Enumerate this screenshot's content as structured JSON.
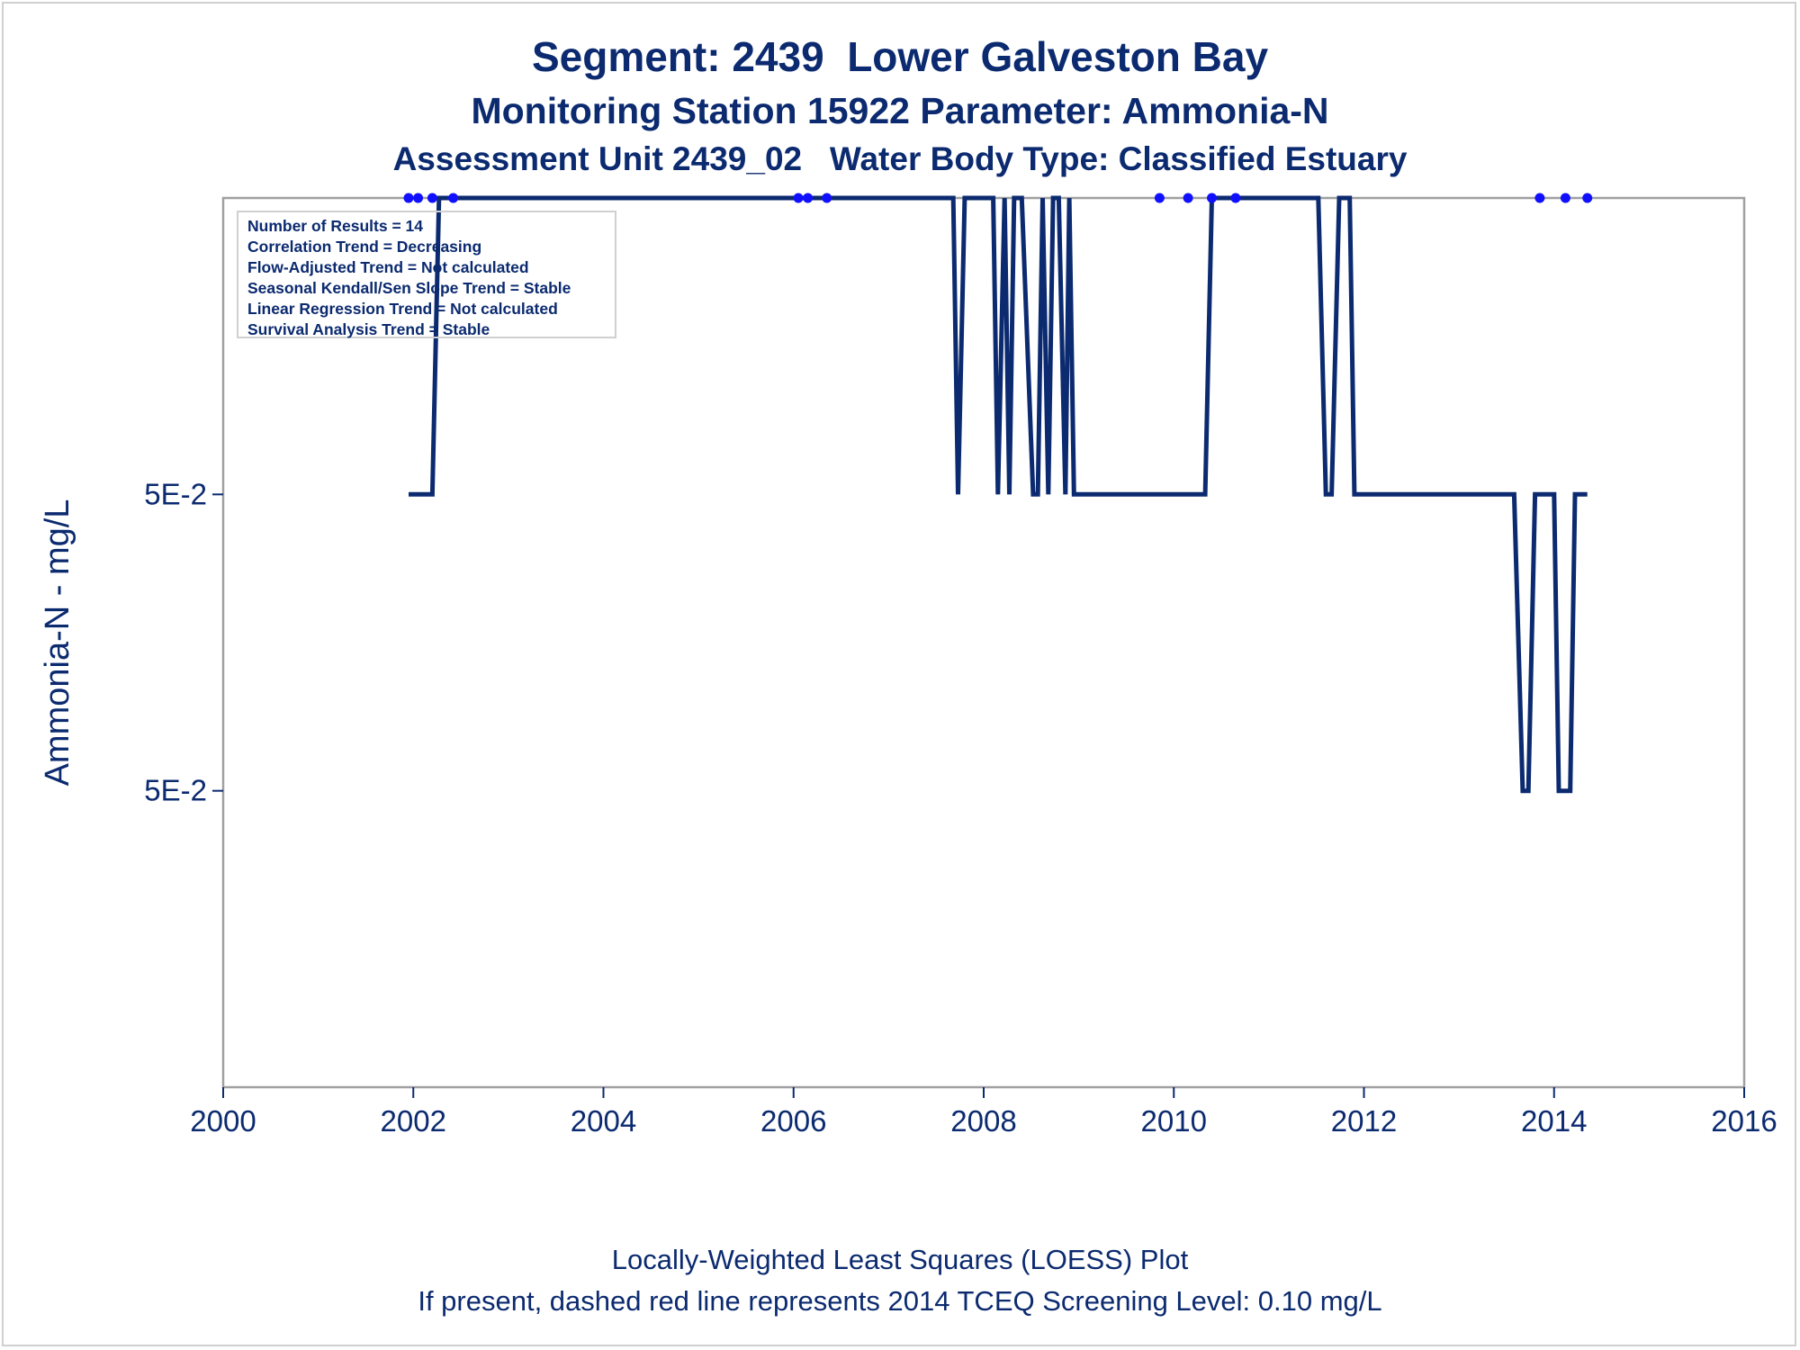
{
  "titles": {
    "line1": "Segment: 2439  Lower Galveston Bay",
    "line2": "Monitoring Station 15922 Parameter: Ammonia-N",
    "line3": "Assessment Unit 2439_02   Water Body Type: Classified Estuary"
  },
  "footnotes": {
    "line1": "Locally-Weighted Least Squares (LOESS) Plot",
    "line2": "If present, dashed red line represents 2014 TCEQ Screening Level: 0.10 mg/L"
  },
  "stats": [
    "Number of Results = 14",
    "Correlation Trend = Decreasing",
    "Flow-Adjusted Trend = Not calculated",
    "Seasonal Kendall/Sen Slope Trend = Stable",
    "Linear Regression Trend = Not calculated",
    "Survival Analysis Trend = Stable"
  ],
  "colors": {
    "text": "#0b2a6f",
    "loess_line": "#0b2a6f",
    "points": "#1010ff",
    "frame": "#a0a0a0"
  },
  "chart_data": {
    "type": "line",
    "title": "Segment: 2439  Lower Galveston Bay",
    "xlabel": "",
    "ylabel": "Ammonia-N - mg/L",
    "xlim": [
      2000,
      2016
    ],
    "x_ticks": [
      "2000",
      "2002",
      "2004",
      "2006",
      "2008",
      "2010",
      "2012",
      "2014",
      "2016"
    ],
    "y_ticks": [
      "5E-2",
      "5E-2"
    ],
    "y_tick_values": [
      0.05,
      0.04999999
    ],
    "ylim": [
      0.04999998,
      0.05000001
    ],
    "grid": false,
    "legend": "none",
    "series": [
      {
        "type": "points",
        "x": [
          2001.95,
          2002.05,
          2002.2,
          2002.42,
          2006.05,
          2006.15,
          2006.35,
          2009.85,
          2010.15,
          2010.4,
          2010.65,
          2013.85,
          2014.12,
          2014.35
        ],
        "y": [
          0.05000001,
          0.05000001,
          0.05000001,
          0.05000001,
          0.05000001,
          0.05000001,
          0.05000001,
          0.05000001,
          0.05000001,
          0.05000001,
          0.05000001,
          0.05000001,
          0.05000001,
          0.05000001
        ]
      },
      {
        "type": "loess",
        "x": [
          2001.95,
          2002.2,
          2002.27,
          2007.68,
          2007.73,
          2007.8,
          2008.1,
          2008.15,
          2008.22,
          2008.27,
          2008.32,
          2008.4,
          2008.52,
          2008.57,
          2008.62,
          2008.68,
          2008.73,
          2008.79,
          2008.86,
          2008.9,
          2008.95,
          2009.0,
          2009.04,
          2010.33,
          2010.4,
          2011.52,
          2011.6,
          2011.66,
          2011.74,
          2011.85,
          2011.9,
          2013.58,
          2013.67,
          2013.73,
          2013.8,
          2014.0,
          2014.05,
          2014.17,
          2014.22,
          2014.35
        ],
        "y": [
          0.05,
          0.05,
          0.05000001,
          0.05000001,
          0.05,
          0.05000001,
          0.05000001,
          0.05,
          0.05000001,
          0.05,
          0.05000001,
          0.05000001,
          0.05,
          0.05,
          0.05000001,
          0.05,
          0.05000001,
          0.05000001,
          0.05,
          0.05000001,
          0.05,
          0.05,
          0.05,
          0.05,
          0.05000001,
          0.05000001,
          0.05,
          0.05,
          0.05000001,
          0.05000001,
          0.05,
          0.05,
          0.04999999,
          0.04999999,
          0.05,
          0.05,
          0.04999999,
          0.04999999,
          0.05,
          0.05
        ]
      }
    ]
  }
}
